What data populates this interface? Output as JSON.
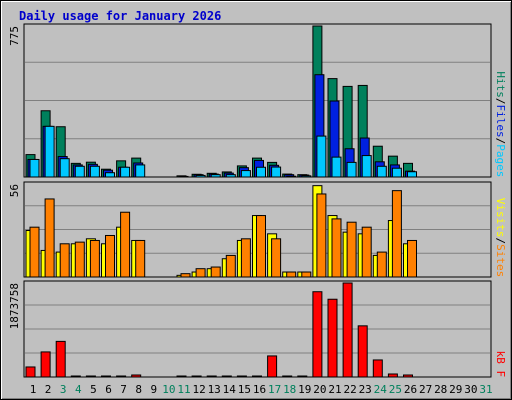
{
  "title": "Daily usage for January 2026",
  "colors": {
    "hits": "#00805c",
    "files": "#0020e0",
    "pages": "#00c8ff",
    "visits": "#ffff00",
    "sites": "#ff8000",
    "kbytes": "#ff0000",
    "weekend": "#00805c",
    "weekday": "#000000",
    "sep": "#000000"
  },
  "chart_data": [
    {
      "type": "bar",
      "panel": "hits_files_pages",
      "ymax_label": "775",
      "y_max": 775,
      "legend": [
        "Pages",
        "Files",
        "Hits"
      ],
      "categories": [
        "1",
        "2",
        "3",
        "4",
        "5",
        "6",
        "7",
        "8",
        "9",
        "10",
        "11",
        "12",
        "13",
        "14",
        "15",
        "16",
        "17",
        "18",
        "19",
        "20",
        "21",
        "22",
        "23",
        "24",
        "25",
        "26",
        "27",
        "28",
        "29",
        "30",
        "31"
      ],
      "series": [
        {
          "name": "Hits",
          "values": [
            115,
            340,
            258,
            70,
            76,
            40,
            83,
            97,
            0,
            0,
            6,
            14,
            19,
            26,
            57,
            97,
            75,
            15,
            12,
            775,
            505,
            465,
            470,
            158,
            107,
            70,
            0,
            0,
            0,
            0,
            0
          ]
        },
        {
          "name": "Files",
          "values": [
            90,
            260,
            105,
            62,
            65,
            35,
            50,
            72,
            0,
            0,
            3,
            12,
            15,
            20,
            48,
            85,
            60,
            12,
            10,
            525,
            390,
            145,
            200,
            78,
            62,
            30,
            0,
            0,
            0,
            0,
            0
          ]
        },
        {
          "name": "Pages",
          "values": [
            90,
            260,
            94,
            55,
            55,
            22,
            50,
            62,
            0,
            0,
            0,
            8,
            12,
            12,
            33,
            50,
            51,
            4,
            6,
            210,
            102,
            75,
            110,
            55,
            45,
            27,
            0,
            0,
            0,
            0,
            0
          ]
        }
      ]
    },
    {
      "type": "bar",
      "panel": "visits_sites",
      "ymax_label": "56",
      "y_max": 56,
      "legend": [
        "Sites",
        "Visits"
      ],
      "categories": [
        "1",
        "2",
        "3",
        "4",
        "5",
        "6",
        "7",
        "8",
        "9",
        "10",
        "11",
        "12",
        "13",
        "14",
        "15",
        "16",
        "17",
        "18",
        "19",
        "20",
        "21",
        "22",
        "23",
        "24",
        "25",
        "26",
        "27",
        "28",
        "29",
        "30",
        "31"
      ],
      "series": [
        {
          "name": "Visits",
          "values": [
            28,
            16,
            15,
            20,
            23,
            20,
            30,
            22,
            0,
            0,
            1,
            3,
            5,
            11,
            22,
            37,
            26,
            3,
            3,
            55,
            37,
            27,
            26,
            13,
            34,
            20,
            0,
            0,
            0,
            0,
            0
          ]
        },
        {
          "name": "Sites",
          "values": [
            30,
            47,
            20,
            21,
            22,
            25,
            39,
            22,
            0,
            0,
            2,
            5,
            6,
            13,
            23,
            37,
            23,
            3,
            3,
            50,
            35,
            33,
            30,
            15,
            52,
            22,
            0,
            0,
            0,
            0,
            0
          ]
        }
      ]
    },
    {
      "type": "bar",
      "panel": "kbytes",
      "ymax_label": "1873758",
      "y_max": 1873758,
      "legend": [
        "kB F"
      ],
      "categories": [
        "1",
        "2",
        "3",
        "4",
        "5",
        "6",
        "7",
        "8",
        "9",
        "10",
        "11",
        "12",
        "13",
        "14",
        "15",
        "16",
        "17",
        "18",
        "19",
        "20",
        "21",
        "22",
        "23",
        "24",
        "25",
        "26",
        "27",
        "28",
        "29",
        "30",
        "31"
      ],
      "series": [
        {
          "name": "kB F",
          "values": [
            200000,
            500000,
            710000,
            20000,
            20000,
            20000,
            20000,
            40000,
            0,
            0,
            20000,
            20000,
            20000,
            20000,
            20000,
            20000,
            420000,
            20000,
            20000,
            1700000,
            1550000,
            1873758,
            1020000,
            340000,
            60000,
            40000,
            0,
            0,
            0,
            0,
            0
          ]
        }
      ]
    }
  ],
  "weekend_days": [
    3,
    4,
    10,
    11,
    17,
    18,
    24,
    25,
    31
  ]
}
